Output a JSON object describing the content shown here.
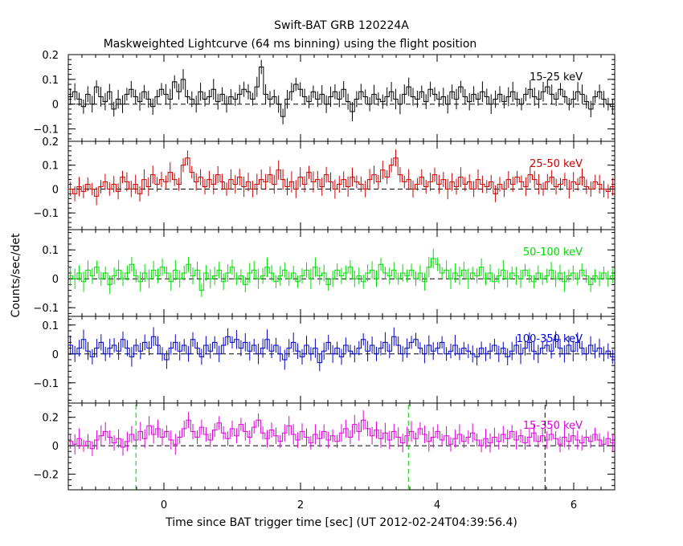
{
  "title": "Swift-BAT GRB 120224A",
  "subtitle": "Maskweighted Lightcurve (64 ms binning) using the flight position",
  "xlabel": "Time since BAT trigger time [sec] (UT 2012-02-24T04:39:56.4)",
  "ylabel": "Counts/sec/det",
  "chart_data": {
    "type": "line",
    "style": "step with error bars",
    "title": "Swift-BAT GRB 120224A",
    "subtitle": "Maskweighted Lightcurve (64 ms binning) using the flight position",
    "xlabel": "Time since BAT trigger time [sec] (UT 2012-02-24T04:39:56.4)",
    "ylabel": "Counts/sec/det",
    "xlim": [
      -1.4,
      6.6
    ],
    "x_ticks": [
      0,
      2,
      4,
      6
    ],
    "bin_width_sec": 0.064,
    "vertical_markers_sec": [
      -0.41,
      3.58,
      5.58
    ],
    "panels": [
      {
        "name": "15-25 keV",
        "color": "#000000",
        "ylim": [
          -0.15,
          0.2
        ],
        "yticks": [
          -0.1,
          0,
          0.1,
          0.2
        ],
        "ytick_labels": [
          "−0.1",
          "0",
          "0.1",
          "0.2"
        ],
        "values": [
          0.03,
          0.05,
          0.02,
          -0.01,
          0.04,
          0.0,
          0.07,
          0.03,
          0.01,
          0.05,
          -0.02,
          0.02,
          0.0,
          0.04,
          0.06,
          0.03,
          0.01,
          0.05,
          0.02,
          -0.01,
          0.03,
          0.06,
          0.04,
          0.02,
          0.09,
          0.05,
          0.1,
          0.03,
          0.02,
          0.0,
          0.05,
          0.02,
          0.03,
          0.06,
          0.01,
          0.04,
          0.0,
          0.03,
          0.02,
          0.04,
          0.06,
          0.05,
          0.02,
          0.07,
          0.15,
          0.04,
          0.02,
          0.03,
          0.0,
          -0.05,
          0.02,
          0.05,
          0.08,
          0.06,
          0.03,
          0.01,
          0.05,
          0.02,
          0.04,
          0.0,
          0.03,
          0.05,
          0.02,
          0.06,
          0.01,
          -0.03,
          0.02,
          0.05,
          0.03,
          0.0,
          0.04,
          0.02,
          0.01,
          0.03,
          0.05,
          0.02,
          0.0,
          0.04,
          0.07,
          0.03,
          0.02,
          0.05,
          0.01,
          0.06,
          0.04,
          0.02,
          0.03,
          0.0,
          0.05,
          0.02,
          0.07,
          0.03,
          0.01,
          0.04,
          0.02,
          0.05,
          0.03,
          0.0,
          0.02,
          0.04,
          0.01,
          0.03,
          0.05,
          0.02,
          0.0,
          0.04,
          0.06,
          0.03,
          0.02,
          0.05,
          0.07,
          0.04,
          0.02,
          0.06,
          0.03,
          0.0,
          0.02,
          0.05,
          0.04,
          0.01,
          -0.02,
          0.03,
          0.05,
          0.02,
          0.0,
          -0.01
        ]
      },
      {
        "name": "25-50 keV",
        "color": "#cc0000",
        "ylim": [
          -0.17,
          0.2
        ],
        "yticks": [
          -0.1,
          0,
          0.1,
          0.2
        ],
        "ytick_labels": [
          "−0.1",
          "0",
          "0.1",
          "0.2"
        ],
        "values": [
          0.0,
          -0.02,
          0.01,
          -0.01,
          0.02,
          0.0,
          -0.03,
          0.01,
          0.03,
          0.0,
          0.02,
          -0.01,
          0.05,
          0.03,
          0.0,
          0.02,
          -0.02,
          0.04,
          0.01,
          0.06,
          0.02,
          0.04,
          0.03,
          0.07,
          0.04,
          0.02,
          0.1,
          0.13,
          0.07,
          0.03,
          0.05,
          0.01,
          0.04,
          0.02,
          0.06,
          0.03,
          0.0,
          0.04,
          0.02,
          0.05,
          0.01,
          0.03,
          0.0,
          0.02,
          0.04,
          0.03,
          0.06,
          0.02,
          0.08,
          0.04,
          0.01,
          0.03,
          0.0,
          0.05,
          0.02,
          0.07,
          0.03,
          0.04,
          0.01,
          0.06,
          0.03,
          0.0,
          0.02,
          0.04,
          0.01,
          0.05,
          0.03,
          0.02,
          0.0,
          0.04,
          0.06,
          0.03,
          0.08,
          0.05,
          0.1,
          0.13,
          0.06,
          0.03,
          0.04,
          0.0,
          0.02,
          0.05,
          0.01,
          0.03,
          0.06,
          0.02,
          0.04,
          0.0,
          0.03,
          0.01,
          0.05,
          0.02,
          0.03,
          0.0,
          0.04,
          0.02,
          0.01,
          0.03,
          -0.02,
          0.02,
          0.0,
          0.04,
          0.02,
          0.05,
          0.03,
          0.01,
          0.06,
          0.04,
          0.02,
          0.0,
          0.03,
          0.05,
          0.01,
          0.02,
          0.04,
          0.0,
          0.03,
          0.02,
          0.05,
          0.01,
          0.0,
          0.03,
          0.02,
          0.0,
          -0.01,
          0.01
        ]
      },
      {
        "name": "50-100 keV",
        "color": "#00dd00",
        "ylim": [
          -0.13,
          0.17
        ],
        "yticks": [
          -0.1,
          0,
          0.1
        ],
        "ytick_labels": [
          "−0.1",
          "0",
          "0.1"
        ],
        "values": [
          0.01,
          0.0,
          0.02,
          -0.01,
          0.03,
          0.01,
          0.04,
          0.0,
          0.02,
          -0.02,
          0.01,
          0.03,
          0.0,
          0.02,
          0.05,
          0.01,
          -0.01,
          0.02,
          0.0,
          0.03,
          0.01,
          0.04,
          0.02,
          -0.01,
          0.03,
          0.0,
          0.02,
          0.05,
          0.01,
          0.03,
          -0.04,
          0.02,
          0.0,
          0.01,
          0.03,
          -0.01,
          0.02,
          0.04,
          0.0,
          0.01,
          -0.02,
          0.02,
          0.03,
          0.0,
          0.01,
          0.04,
          0.02,
          -0.01,
          0.01,
          0.03,
          0.0,
          0.02,
          -0.01,
          0.01,
          0.03,
          0.0,
          0.04,
          0.01,
          0.02,
          -0.02,
          0.0,
          0.03,
          0.01,
          0.02,
          0.04,
          0.0,
          0.01,
          -0.01,
          0.02,
          0.03,
          0.0,
          0.05,
          0.02,
          0.01,
          0.03,
          0.0,
          0.02,
          0.01,
          0.03,
          0.0,
          0.02,
          -0.01,
          0.04,
          0.07,
          0.05,
          0.02,
          0.03,
          0.0,
          0.02,
          0.01,
          0.03,
          0.0,
          0.02,
          0.01,
          0.04,
          0.0,
          0.02,
          -0.01,
          0.01,
          0.03,
          0.0,
          0.02,
          0.01,
          0.0,
          0.03,
          0.01,
          -0.01,
          0.02,
          0.0,
          0.01,
          0.03,
          0.0,
          0.02,
          -0.01,
          0.01,
          0.02,
          0.0,
          0.03,
          0.01,
          -0.02,
          0.01,
          0.0,
          0.02,
          0.0,
          0.01
        ]
      },
      {
        "name": "100-350 keV",
        "color": "#0000cc",
        "ylim": [
          -0.17,
          0.13
        ],
        "yticks": [
          -0.1,
          0,
          0.1
        ],
        "ytick_labels": [
          "−0.1",
          "0",
          "0.1"
        ],
        "values": [
          0.03,
          0.0,
          0.02,
          0.05,
          0.01,
          -0.01,
          0.02,
          0.04,
          0.0,
          0.02,
          0.03,
          0.01,
          0.05,
          0.02,
          -0.01,
          0.03,
          0.01,
          0.04,
          0.02,
          0.06,
          0.03,
          0.0,
          -0.02,
          0.02,
          0.04,
          0.01,
          0.03,
          0.0,
          0.05,
          0.02,
          -0.01,
          0.03,
          0.01,
          0.04,
          0.0,
          0.03,
          0.06,
          0.04,
          0.05,
          0.02,
          0.04,
          0.01,
          0.03,
          0.0,
          0.02,
          0.05,
          0.01,
          0.03,
          0.0,
          -0.02,
          0.02,
          0.04,
          0.01,
          -0.01,
          0.03,
          0.0,
          0.02,
          -0.03,
          0.01,
          0.04,
          0.0,
          0.02,
          -0.01,
          0.03,
          0.01,
          0.0,
          0.02,
          0.05,
          0.01,
          0.03,
          0.0,
          0.02,
          0.04,
          0.01,
          0.06,
          0.03,
          0.0,
          0.02,
          0.04,
          0.05,
          0.02,
          0.0,
          0.03,
          0.01,
          0.02,
          0.04,
          0.0,
          0.01,
          0.03,
          0.0,
          0.02,
          0.01,
          0.0,
          -0.01,
          0.02,
          0.0,
          0.01,
          0.03,
          0.0,
          0.02,
          -0.01,
          0.01,
          0.03,
          0.0,
          0.02,
          0.04,
          0.01,
          0.0,
          0.02,
          0.03,
          0.01,
          0.05,
          0.02,
          0.0,
          0.03,
          0.01,
          0.04,
          0.02,
          0.0,
          0.03,
          0.01,
          0.02,
          0.0,
          0.01,
          -0.01
        ]
      },
      {
        "name": "15-350 keV",
        "color": "#dd00dd",
        "ylim": [
          -0.31,
          0.3
        ],
        "yticks": [
          -0.2,
          0,
          0.2
        ],
        "ytick_labels": [
          "−0.2",
          "0",
          "0.2"
        ],
        "values": [
          0.03,
          0.01,
          0.05,
          0.0,
          0.03,
          -0.02,
          0.04,
          0.07,
          0.1,
          0.06,
          0.02,
          0.05,
          -0.01,
          0.03,
          0.08,
          0.04,
          0.1,
          0.05,
          0.14,
          0.08,
          0.12,
          0.06,
          0.1,
          0.04,
          0.01,
          0.06,
          0.12,
          0.18,
          0.1,
          0.06,
          0.13,
          0.08,
          0.04,
          0.11,
          0.16,
          0.09,
          0.05,
          0.12,
          0.07,
          0.15,
          0.1,
          0.06,
          0.13,
          0.18,
          0.09,
          0.05,
          0.11,
          0.07,
          0.03,
          0.09,
          0.14,
          0.08,
          0.04,
          0.1,
          0.06,
          0.02,
          0.08,
          0.05,
          0.1,
          0.04,
          0.07,
          0.03,
          0.09,
          0.12,
          0.06,
          0.15,
          0.1,
          0.18,
          0.12,
          0.07,
          0.11,
          0.05,
          0.09,
          0.04,
          0.1,
          0.06,
          0.02,
          0.07,
          0.1,
          0.05,
          0.12,
          0.08,
          0.03,
          0.06,
          0.1,
          0.04,
          0.07,
          0.01,
          0.05,
          0.08,
          0.03,
          0.06,
          0.09,
          0.04,
          0.0,
          0.05,
          0.02,
          0.06,
          0.03,
          0.08,
          0.05,
          0.1,
          0.04,
          0.07,
          0.02,
          0.06,
          0.09,
          0.03,
          0.07,
          0.04,
          0.08,
          0.05,
          0.01,
          0.06,
          0.03,
          0.07,
          0.04,
          0.02,
          0.06,
          0.03,
          0.08,
          0.04,
          0.01,
          0.05,
          0.02
        ]
      }
    ]
  }
}
